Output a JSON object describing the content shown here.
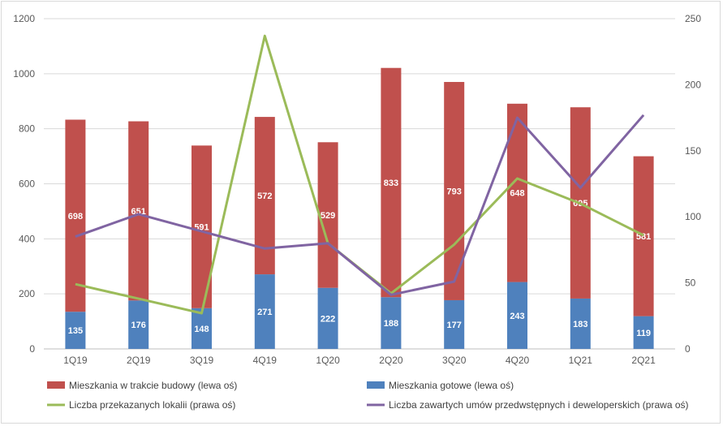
{
  "chart_data": {
    "type": "bar",
    "stacked": true,
    "categories": [
      "1Q19",
      "2Q19",
      "3Q19",
      "4Q19",
      "1Q20",
      "2Q20",
      "3Q20",
      "4Q20",
      "1Q21",
      "2Q21"
    ],
    "series": [
      {
        "name": "Mieszkania gotowe (lewa oś)",
        "kind": "bar",
        "axis": "left",
        "color": "#4f81bd",
        "values": [
          135,
          176,
          148,
          271,
          222,
          188,
          177,
          243,
          183,
          119
        ]
      },
      {
        "name": "Mieszkania w trakcie budowy (lewa oś)",
        "kind": "bar",
        "axis": "left",
        "color": "#c0504d",
        "values": [
          698,
          651,
          591,
          572,
          529,
          833,
          793,
          648,
          695,
          581
        ]
      },
      {
        "name": "Liczba przekazanych lokalii (prawa oś)",
        "kind": "line",
        "axis": "right",
        "color": "#9bbb59",
        "values": [
          49,
          38,
          27,
          237,
          80,
          42,
          79,
          129,
          110,
          86
        ]
      },
      {
        "name": "Liczba zawartych umów przedwstępnych i deweloperskich (prawa oś)",
        "kind": "line",
        "axis": "right",
        "color": "#8064a2",
        "values": [
          85,
          102,
          89,
          76,
          80,
          41,
          51,
          175,
          122,
          177
        ]
      }
    ],
    "ylim_left": [
      0,
      1200
    ],
    "yticks_left": [
      "0",
      "200",
      "400",
      "600",
      "800",
      "1000",
      "1200"
    ],
    "ylim_right": [
      0,
      250
    ],
    "yticks_right": [
      "0",
      "50",
      "100",
      "150",
      "200",
      "250"
    ],
    "legend_position": "bottom",
    "legend_order": [
      1,
      0,
      2,
      3
    ],
    "grid": "horizontal"
  }
}
